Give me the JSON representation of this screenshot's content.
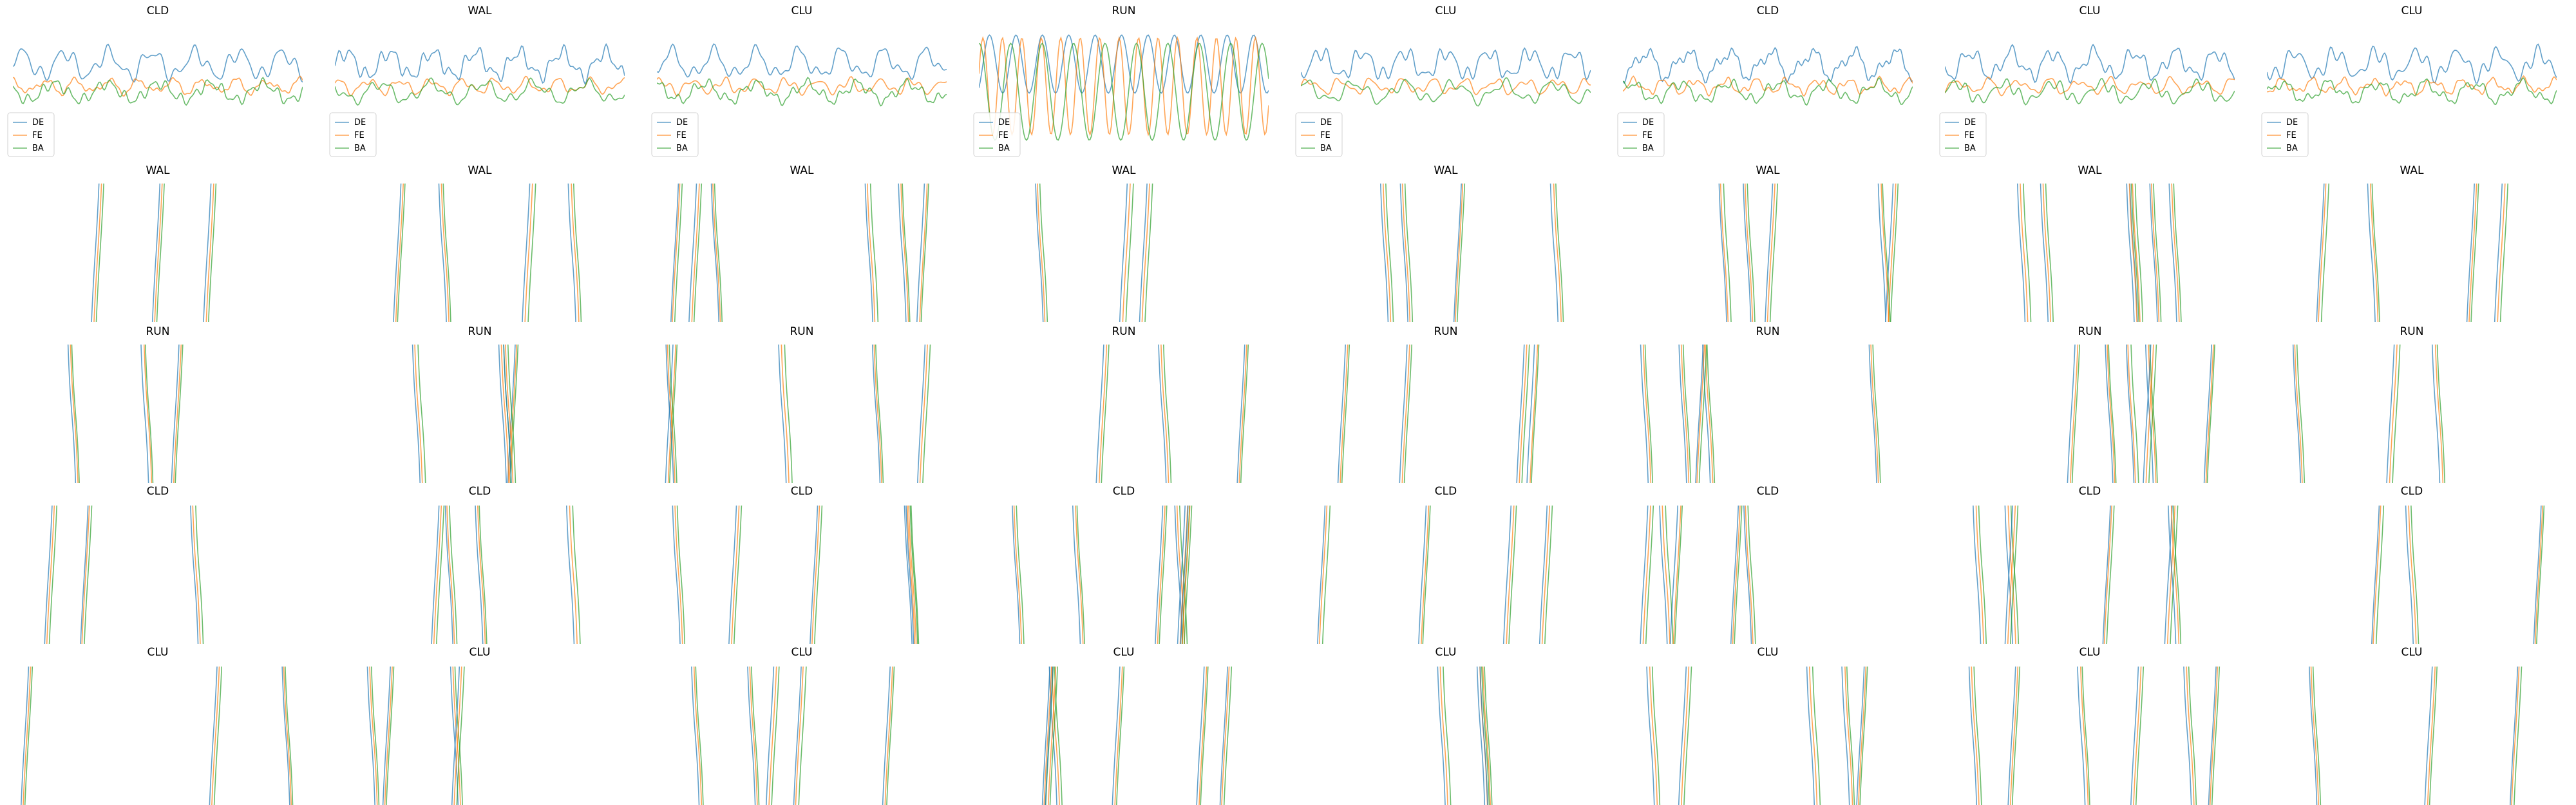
{
  "chart_data": {
    "type": "line",
    "layout": "grid",
    "rows": 5,
    "cols": 8,
    "legend_entries": [
      "DE",
      "FE",
      "BA"
    ],
    "legend_placement": "lower-left",
    "legend_rows": [
      0
    ],
    "colors": {
      "DE": "#1f77b4",
      "FE": "#ff7f0e",
      "BA": "#2ca02c"
    },
    "grid": false,
    "axes_visible": false,
    "line_opacity": 0.7,
    "panel_titles": [
      [
        "CLD",
        "WAL",
        "CLU",
        "RUN",
        "CLU",
        "CLD",
        "CLU",
        "CLU"
      ],
      [
        "WAL",
        "WAL",
        "WAL",
        "WAL",
        "WAL",
        "WAL",
        "WAL",
        "WAL"
      ],
      [
        "RUN",
        "RUN",
        "RUN",
        "RUN",
        "RUN",
        "RUN",
        "RUN",
        "RUN"
      ],
      [
        "CLD",
        "CLD",
        "CLD",
        "CLD",
        "CLD",
        "CLD",
        "CLD",
        "CLD"
      ],
      [
        "CLU",
        "CLU",
        "CLU",
        "CLU",
        "CLU",
        "CLU",
        "CLU",
        "CLU"
      ]
    ]
  }
}
